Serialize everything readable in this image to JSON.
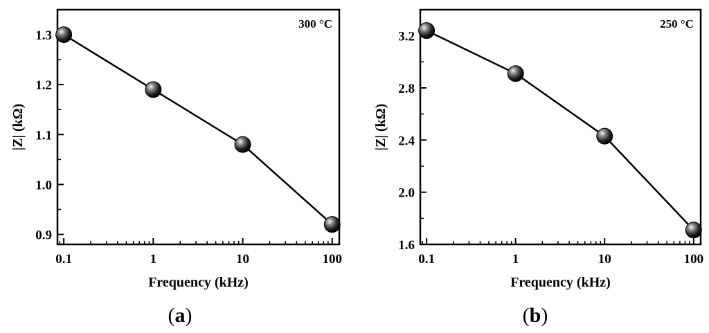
{
  "chart_data": [
    {
      "type": "line",
      "panel_label": "(a)",
      "panel_letter": "a",
      "annotation": "300 °C",
      "xlabel": "Frequency (kHz)",
      "ylabel": "|Z| (kΩ)",
      "x_scale": "log",
      "xlim": [
        0.085,
        120
      ],
      "ylim": [
        0.88,
        1.35
      ],
      "x_ticks": [
        0.1,
        1,
        10,
        100
      ],
      "x_tick_labels": [
        "0.1",
        "1",
        "10",
        "100"
      ],
      "y_ticks": [
        0.9,
        1.0,
        1.1,
        1.2,
        1.3
      ],
      "y_tick_labels": [
        "0.9",
        "1.0",
        "1.1",
        "1.2",
        "1.3"
      ],
      "grid": false,
      "series": [
        {
          "x": [
            0.1,
            1,
            10,
            100
          ],
          "y": [
            1.3,
            1.19,
            1.08,
            0.92
          ]
        }
      ]
    },
    {
      "type": "line",
      "panel_label": "(b)",
      "panel_letter": "b",
      "annotation": "250 °C",
      "xlabel": "Frequency (kHz)",
      "ylabel": "|Z| (kΩ)",
      "x_scale": "log",
      "xlim": [
        0.085,
        120
      ],
      "ylim": [
        1.6,
        3.4
      ],
      "x_ticks": [
        0.1,
        1,
        10,
        100
      ],
      "x_tick_labels": [
        "0.1",
        "1",
        "10",
        "100"
      ],
      "y_ticks": [
        1.6,
        2.0,
        2.4,
        2.8,
        3.2
      ],
      "y_tick_labels": [
        "1.6",
        "2.0",
        "2.4",
        "2.8",
        "3.2"
      ],
      "grid": false,
      "series": [
        {
          "x": [
            0.1,
            1,
            10,
            100
          ],
          "y": [
            3.24,
            2.91,
            2.43,
            1.71
          ]
        }
      ]
    }
  ]
}
